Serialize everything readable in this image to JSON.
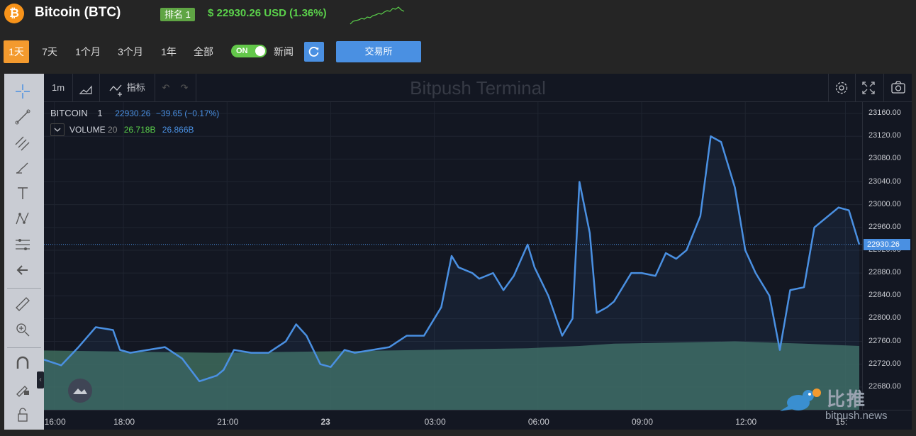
{
  "header": {
    "coin_symbol_icon": "₿",
    "title": "Bitcoin (BTC)",
    "rank": "排名 1",
    "price_change": "$ 22930.26 USD (1.36%)"
  },
  "toolbar": {
    "ranges": [
      "1天",
      "7天",
      "1个月",
      "3个月",
      "1年",
      "全部"
    ],
    "active_range": "1天",
    "toggle_label": "ON",
    "news_label": "新闻",
    "exchange_label": "交易所"
  },
  "chart_toolbar": {
    "interval": "1m",
    "indicators_label": "指标",
    "watermark": "Bitpush Terminal"
  },
  "legend": {
    "symbol": "BITCOIN",
    "interval": "1",
    "last": "22930.26",
    "change": "−39.65 (−0.17%)",
    "volume_label": "VOLUME",
    "volume_period": "20",
    "volume_value": "26.718B",
    "volume_ma": "26.866B"
  },
  "brand": {
    "name": "比推",
    "url": "bitpush.news"
  },
  "colors": {
    "accent": "#f39a2e",
    "line": "#4a90e2",
    "positive": "#5bd14b",
    "volume": "#3e6b5c"
  },
  "chart_data": {
    "type": "area",
    "title": "",
    "xlabel": "",
    "ylabel": "",
    "y_ticks": [
      "23160.00",
      "23120.00",
      "23080.00",
      "23040.00",
      "23000.00",
      "22960.00",
      "22920.00",
      "22880.00",
      "22840.00",
      "22800.00",
      "22760.00",
      "22720.00",
      "22680.00"
    ],
    "ylim": [
      22640,
      23180
    ],
    "x_ticks": [
      "16:00",
      "18:00",
      "21:00",
      "23",
      "03:00",
      "06:00",
      "09:00",
      "12:00",
      "15:"
    ],
    "last_price": "22930.26",
    "grid": true,
    "series": [
      {
        "name": "BITCOIN",
        "x_hours": [
          0,
          0.5,
          1,
          1.5,
          2,
          2.2,
          2.5,
          3,
          3.5,
          4,
          4.5,
          5,
          5.2,
          5.5,
          6,
          6.5,
          7,
          7.3,
          7.6,
          8,
          8.3,
          8.7,
          9,
          9.5,
          10,
          10.5,
          11,
          11.5,
          11.8,
          12,
          12.4,
          12.6,
          13,
          13.3,
          13.6,
          14,
          14.2,
          14.6,
          15,
          15.3,
          15.5,
          15.8,
          16,
          16.3,
          16.5,
          17,
          17.3,
          17.7,
          18.0,
          18.3,
          18.6,
          19,
          19.3,
          19.6,
          20,
          20.3,
          20.6,
          21,
          21.3,
          21.6,
          22,
          22.3,
          22.6,
          23,
          23.3,
          23.6
        ],
        "values": [
          22728,
          22718,
          22750,
          22785,
          22780,
          22745,
          22740,
          22745,
          22750,
          22730,
          22690,
          22700,
          22710,
          22745,
          22740,
          22740,
          22760,
          22790,
          22770,
          22720,
          22715,
          22745,
          22740,
          22745,
          22750,
          22770,
          22770,
          22820,
          22910,
          22890,
          22880,
          22870,
          22880,
          22850,
          22875,
          22930,
          22890,
          22840,
          22770,
          22800,
          23040,
          22950,
          22810,
          22820,
          22830,
          22880,
          22880,
          22875,
          22915,
          22905,
          22920,
          22980,
          23120,
          23110,
          23030,
          22920,
          22880,
          22840,
          22745,
          22850,
          22855,
          22960,
          22975,
          22995,
          22990,
          22930
        ],
        "values_note": ""
      },
      {
        "name": "VOLUME",
        "x_hours": [
          0,
          5,
          10,
          14,
          15.5,
          16.5,
          20,
          22,
          23.6
        ],
        "values": [
          26.7,
          26.69,
          26.7,
          26.71,
          26.72,
          26.73,
          26.74,
          26.73,
          26.72
        ]
      }
    ]
  }
}
